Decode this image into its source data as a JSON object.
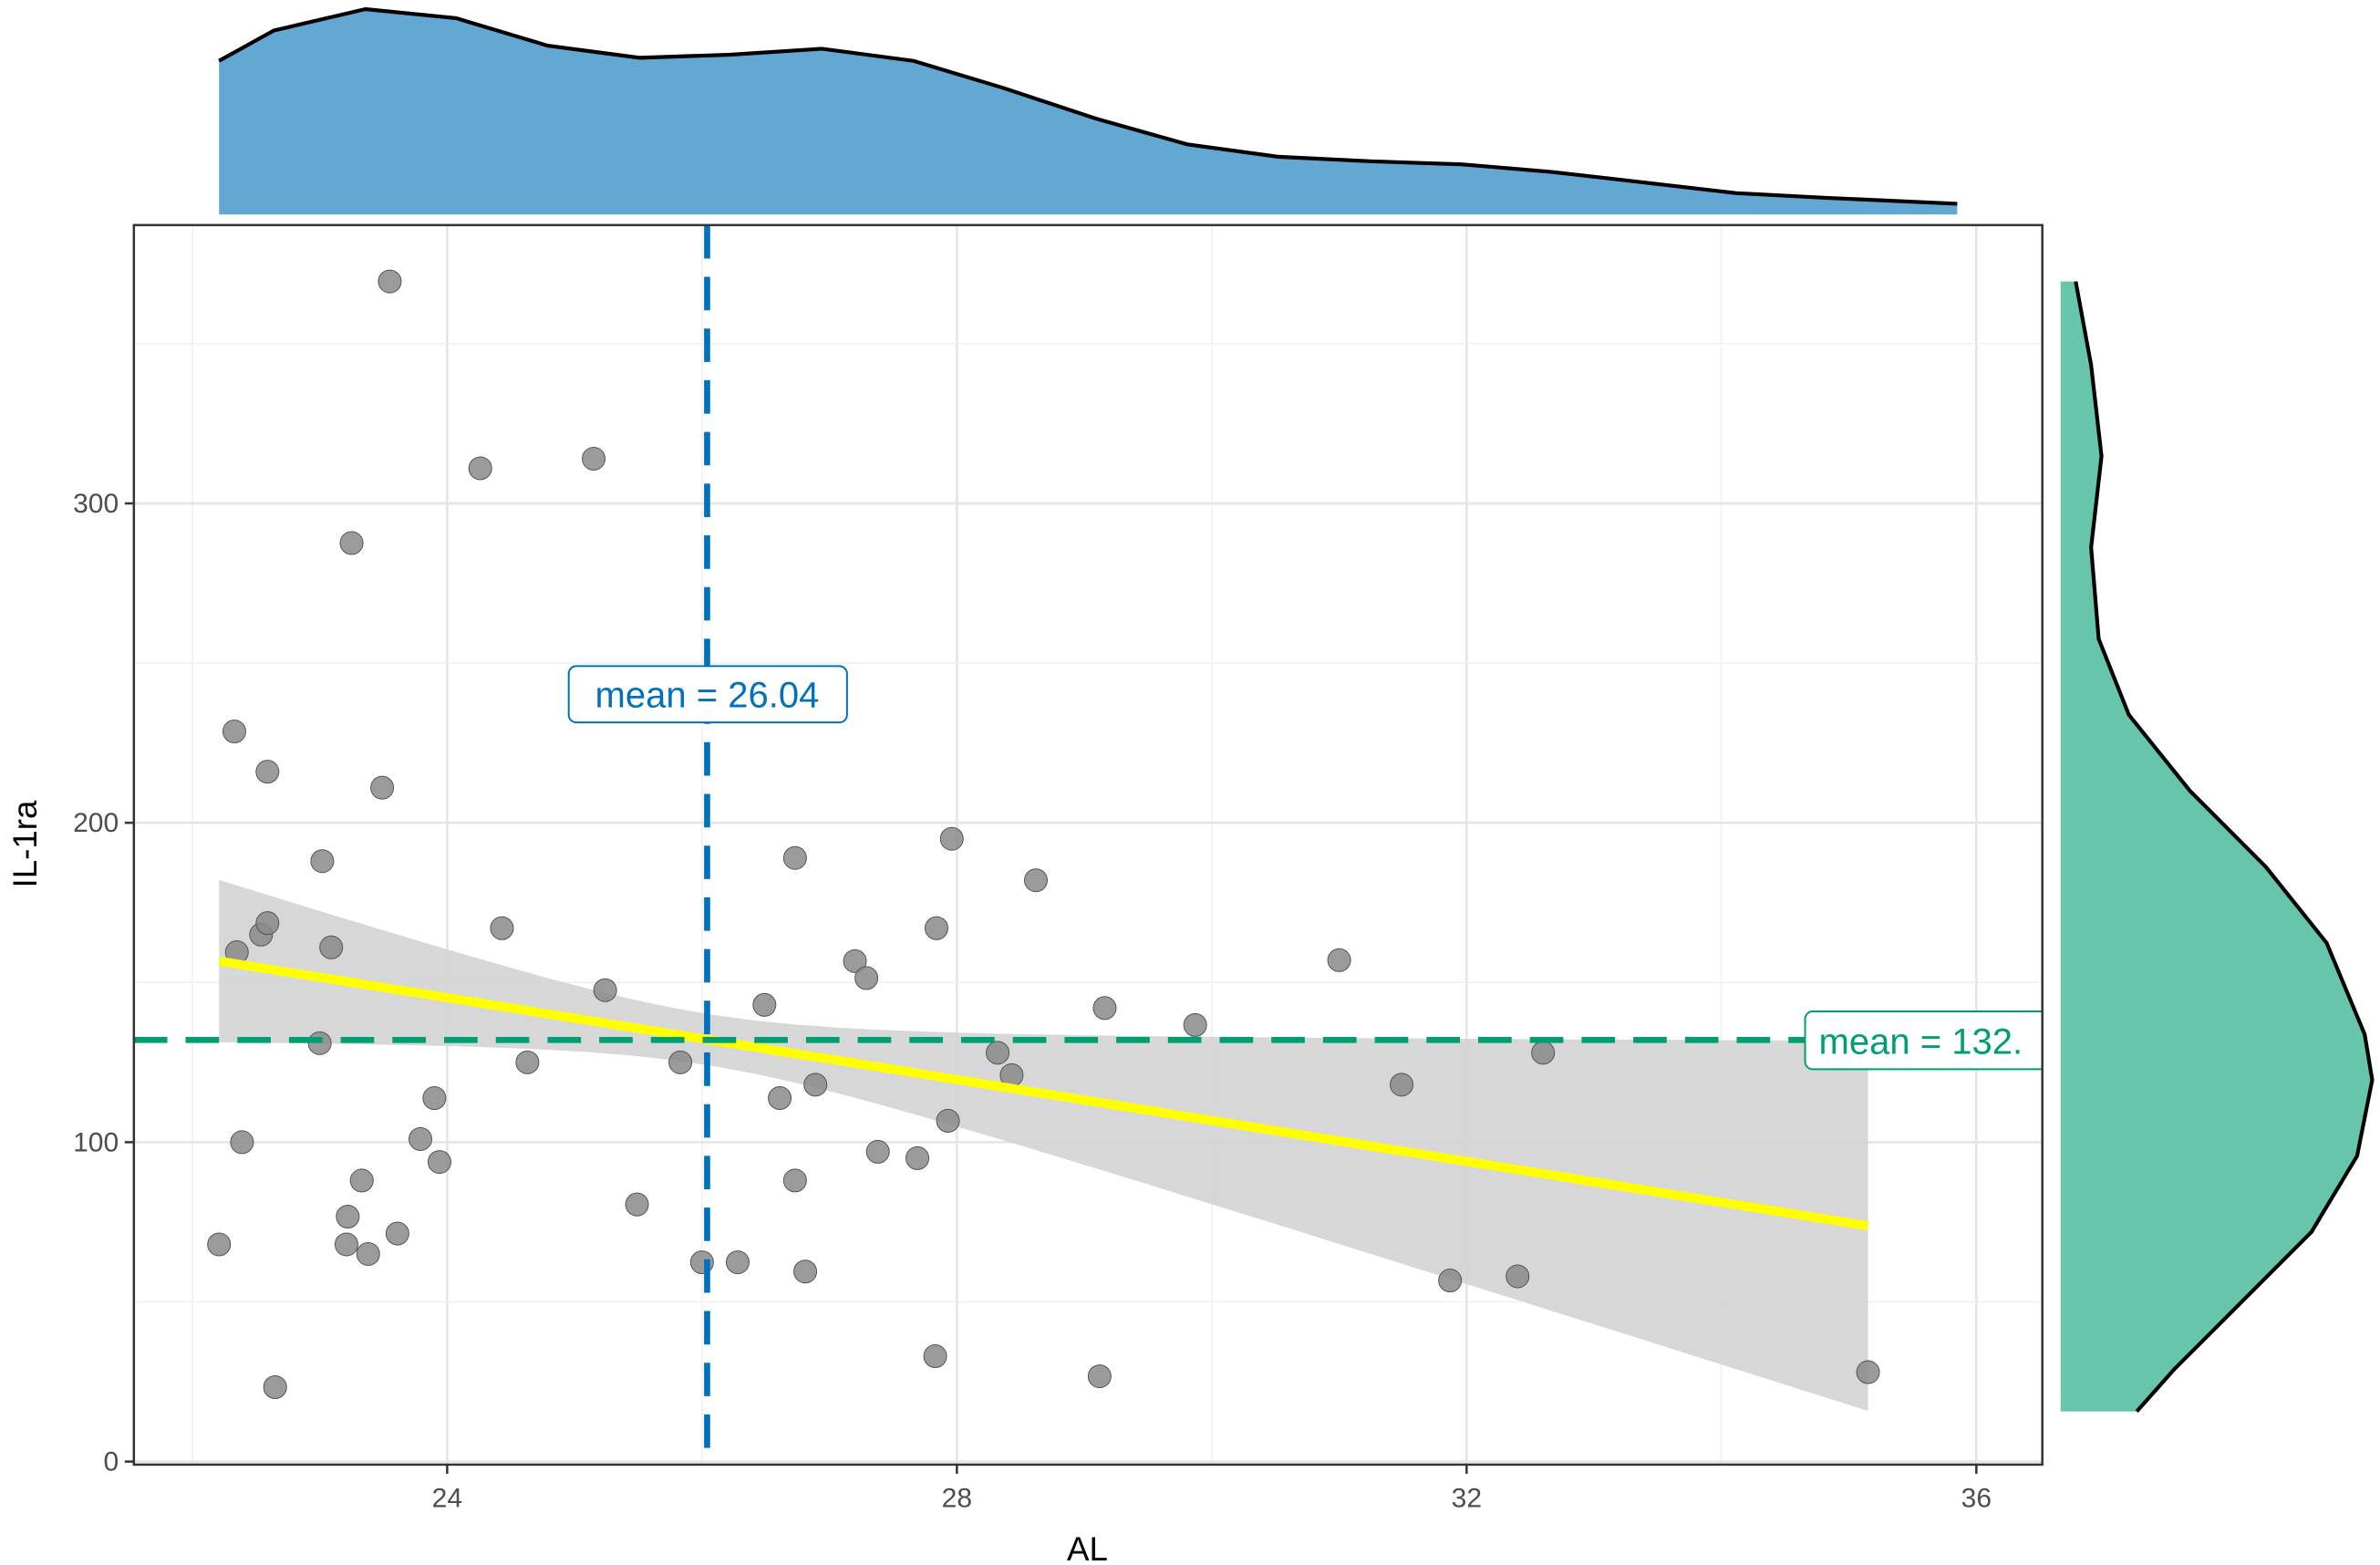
{
  "chart_data": {
    "type": "scatter",
    "xlabel": "AL",
    "ylabel": "IL-1ra",
    "xlim": [
      21.6,
      36.5
    ],
    "ylim": [
      -5,
      386
    ],
    "grid": true,
    "x_ticks": [
      24,
      28,
      32,
      36
    ],
    "y_ticks": [
      0,
      100,
      200,
      300
    ],
    "x_tick_labels": [
      "24",
      "28",
      "32",
      "36"
    ],
    "y_tick_labels": [
      "0",
      "100",
      "200",
      "300"
    ],
    "points": [
      [
        23.55,
        369.5
      ],
      [
        24.26,
        311
      ],
      [
        25.15,
        314
      ],
      [
        23.25,
        287.6
      ],
      [
        22.33,
        228.6
      ],
      [
        22.59,
        216
      ],
      [
        23.49,
        211
      ],
      [
        23.02,
        188
      ],
      [
        22.35,
        159.5
      ],
      [
        22.54,
        165
      ],
      [
        22.59,
        168.6
      ],
      [
        23.09,
        161
      ],
      [
        24.43,
        167
      ],
      [
        25.24,
        147.6
      ],
      [
        23.0,
        131
      ],
      [
        24.63,
        125
      ],
      [
        25.83,
        125
      ],
      [
        23.9,
        113.8
      ],
      [
        22.39,
        100
      ],
      [
        23.79,
        101
      ],
      [
        23.94,
        93.8
      ],
      [
        23.33,
        88
      ],
      [
        23.22,
        76.7
      ],
      [
        23.21,
        68
      ],
      [
        23.38,
        65
      ],
      [
        23.61,
        71.4
      ],
      [
        22.21,
        68
      ],
      [
        25.49,
        80.5
      ],
      [
        22.65,
        23.3
      ],
      [
        26.0,
        62.4
      ],
      [
        26.28,
        62.4
      ],
      [
        26.49,
        143
      ],
      [
        26.73,
        189
      ],
      [
        26.61,
        113.8
      ],
      [
        26.89,
        118
      ],
      [
        26.73,
        88
      ],
      [
        26.81,
        59.5
      ],
      [
        27.2,
        156.7
      ],
      [
        27.29,
        151.4
      ],
      [
        27.38,
        97
      ],
      [
        27.69,
        95
      ],
      [
        27.84,
        167
      ],
      [
        27.96,
        195
      ],
      [
        28.62,
        182
      ],
      [
        28.32,
        128
      ],
      [
        28.43,
        121
      ],
      [
        27.93,
        106.7
      ],
      [
        27.83,
        33
      ],
      [
        29.16,
        142
      ],
      [
        29.87,
        136.7
      ],
      [
        31.0,
        157
      ],
      [
        31.49,
        118
      ],
      [
        32.6,
        128
      ],
      [
        31.87,
        56.7
      ],
      [
        32.4,
        58
      ],
      [
        29.12,
        26.7
      ],
      [
        35.15,
        28
      ]
    ],
    "fit_line": {
      "x": [
        22.21,
        35.15
      ],
      "y": [
        156.7,
        73.8
      ],
      "color": "#ffff00"
    },
    "confidence_band": {
      "x_range": [
        22.21,
        35.15
      ],
      "center_halfwidth": 8,
      "x_center": 26.04,
      "spread_k": 39.7,
      "color": "#d3d3d3"
    },
    "mean_x": {
      "value": 26.04,
      "label": "mean = 26.04",
      "color": "#0072bd"
    },
    "mean_y": {
      "value": 132,
      "label": "mean = 132.",
      "color": "#009e73"
    },
    "x_density": {
      "color": "#62a8d2",
      "x": [
        22.21,
        22.64,
        23.36,
        24.07,
        24.79,
        25.51,
        26.22,
        26.94,
        27.66,
        28.37,
        29.09,
        29.81,
        30.52,
        31.24,
        31.96,
        32.67,
        33.39,
        34.11,
        34.82,
        35.85
      ],
      "density": [
        0.748,
        0.896,
        1.0,
        0.956,
        0.822,
        0.763,
        0.778,
        0.807,
        0.748,
        0.615,
        0.467,
        0.341,
        0.281,
        0.259,
        0.244,
        0.207,
        0.156,
        0.104,
        0.081,
        0.052
      ]
    },
    "y_density": {
      "color": "#66c5aa",
      "y": [
        369.5,
        343.3,
        314.8,
        286.2,
        257.6,
        233.8,
        210,
        186.2,
        162.4,
        133.8,
        119.5,
        95.7,
        71.9,
        48.1,
        29,
        15.7
      ],
      "density": [
        0.048,
        0.097,
        0.13,
        0.097,
        0.121,
        0.217,
        0.411,
        0.652,
        0.845,
        0.966,
        0.99,
        0.942,
        0.797,
        0.556,
        0.362,
        0.242
      ]
    }
  }
}
